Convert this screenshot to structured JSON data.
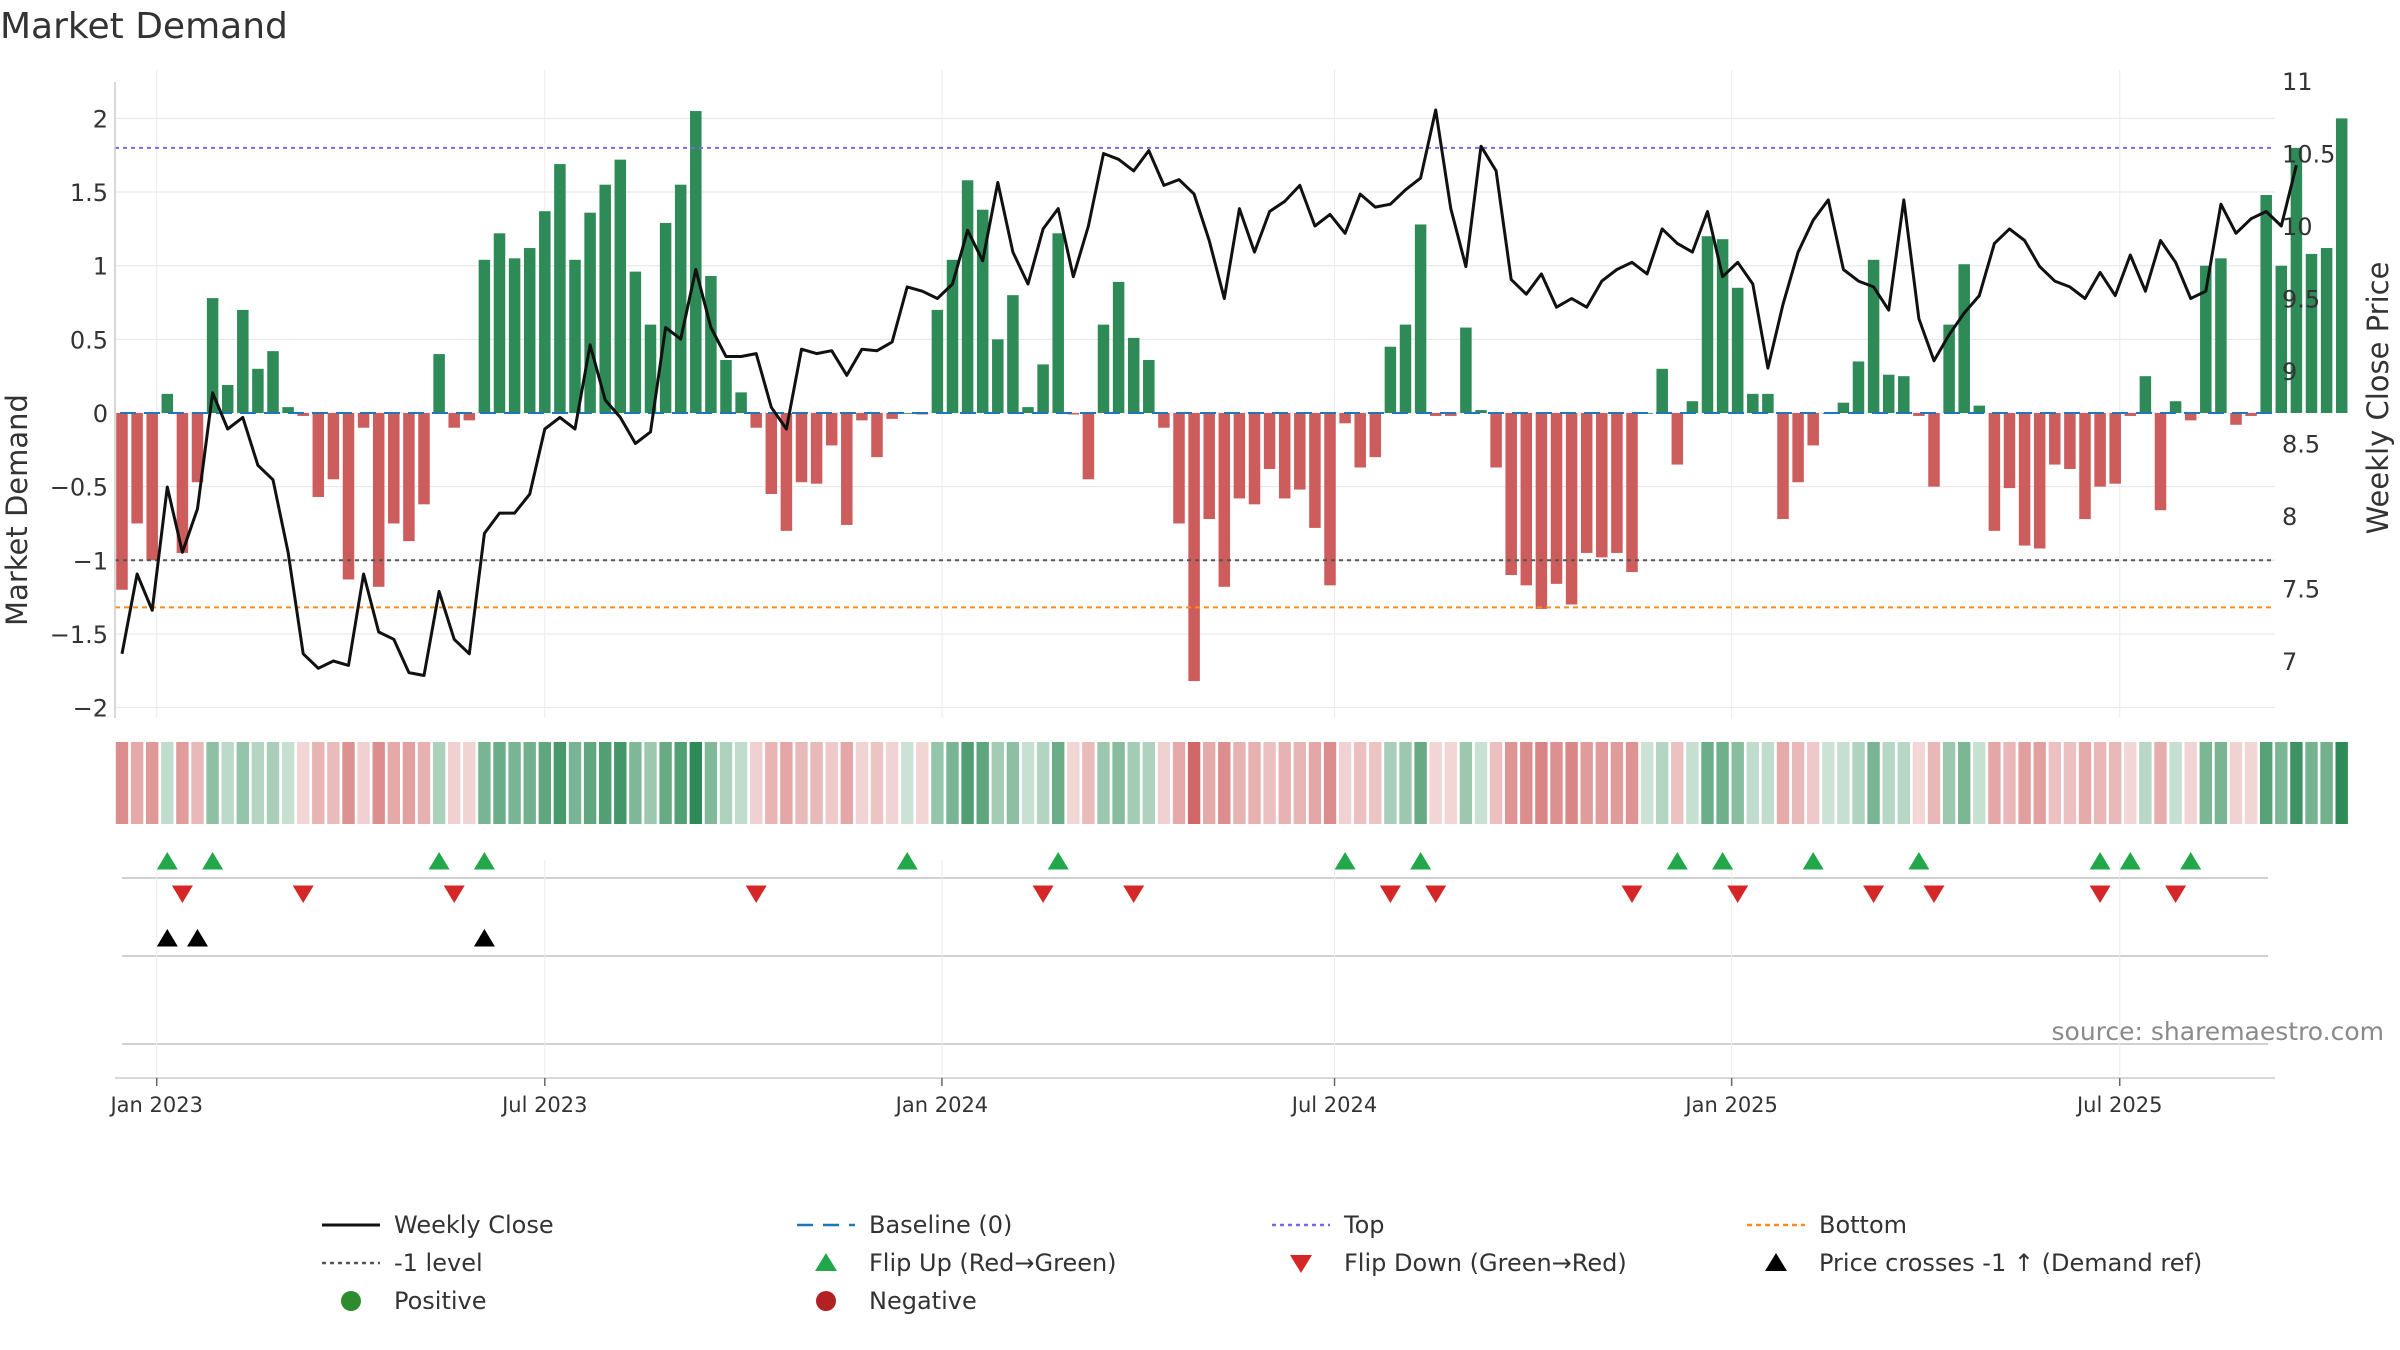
{
  "chart_data": {
    "type": "bar",
    "title": "Market Demand",
    "ylabel_left": "Market Demand",
    "ylabel_right": "Weekly Close Price",
    "ylim_left": [
      -2.1,
      2.3
    ],
    "ylim_right": [
      6.6,
      11.1
    ],
    "y_ticks_left": [
      "2",
      "1.5",
      "1",
      "0.5",
      "0",
      "−0.5",
      "−1",
      "−1.5",
      "−2"
    ],
    "y_tick_values_left": [
      2,
      1.5,
      1,
      0.5,
      0,
      -0.5,
      -1,
      -1.5,
      -2
    ],
    "y_ticks_right": [
      "11",
      "10.5",
      "10",
      "9.5",
      "9",
      "8.5",
      "8",
      "7.5",
      "7"
    ],
    "y_tick_values_right": [
      11,
      10.5,
      10,
      9.5,
      9,
      8.5,
      8,
      7.5,
      7
    ],
    "x_ticks": [
      "Jan 2023",
      "Jul 2023",
      "Jan 2024",
      "Jul 2024",
      "Jan 2025",
      "Jul 2025"
    ],
    "x_tick_week_index": [
      2.3,
      28.0,
      54.3,
      80.3,
      106.6,
      132.3
    ],
    "reference_lines": {
      "top": 1.8,
      "bottom": -1.32,
      "minus_one": -1.0,
      "baseline": 0
    },
    "demand": [
      -1.2,
      -0.75,
      -1.0,
      0.13,
      -0.95,
      -0.47,
      0.78,
      0.19,
      0.7,
      0.3,
      0.42,
      0.04,
      -0.02,
      -0.57,
      -0.45,
      -1.13,
      -0.1,
      -1.18,
      -0.75,
      -0.87,
      -0.62,
      0.4,
      -0.1,
      -0.05,
      1.04,
      1.22,
      1.05,
      1.12,
      1.37,
      1.69,
      1.04,
      1.36,
      1.55,
      1.72,
      0.96,
      0.6,
      1.29,
      1.55,
      2.05,
      0.93,
      0.36,
      0.14,
      -0.1,
      -0.55,
      -0.8,
      -0.47,
      -0.48,
      -0.22,
      -0.76,
      -0.05,
      -0.3,
      -0.04,
      0.0,
      -0.01,
      0.7,
      1.04,
      1.58,
      1.38,
      0.5,
      0.8,
      0.04,
      0.33,
      1.22,
      -0.01,
      -0.45,
      0.6,
      0.89,
      0.51,
      0.36,
      -0.1,
      -0.75,
      -1.82,
      -0.72,
      -1.18,
      -0.58,
      -0.62,
      -0.38,
      -0.58,
      -0.52,
      -0.78,
      -1.17,
      -0.07,
      -0.37,
      -0.3,
      0.45,
      0.6,
      1.28,
      -0.02,
      -0.02,
      0.58,
      0.02,
      -0.37,
      -1.1,
      -1.17,
      -1.33,
      -1.16,
      -1.3,
      -0.95,
      -0.98,
      -0.95,
      -1.08,
      0.0,
      0.3,
      -0.35,
      0.08,
      1.2,
      1.18,
      0.85,
      0.13,
      0.13,
      -0.72,
      -0.47,
      -0.22,
      0.0,
      0.07,
      0.35,
      1.04,
      0.26,
      0.25,
      -0.02,
      -0.5,
      0.6,
      1.01,
      0.05,
      -0.8,
      -0.51,
      -0.9,
      -0.92,
      -0.35,
      -0.38,
      -0.72,
      -0.5,
      -0.48,
      -0.02,
      0.25,
      -0.66,
      0.08,
      -0.05,
      1.0,
      1.05,
      -0.08,
      -0.02,
      1.48,
      1.0,
      1.8,
      1.08,
      1.12,
      2.0
    ],
    "weekly_close": [
      7.05,
      7.6,
      7.35,
      8.2,
      7.75,
      8.05,
      8.85,
      8.6,
      8.68,
      8.35,
      8.25,
      7.75,
      7.05,
      6.95,
      7.0,
      6.97,
      7.6,
      7.2,
      7.15,
      6.92,
      6.9,
      7.48,
      7.15,
      7.05,
      7.88,
      8.02,
      8.02,
      8.15,
      8.6,
      8.68,
      8.6,
      9.18,
      8.8,
      8.68,
      8.5,
      8.58,
      9.3,
      9.22,
      9.7,
      9.3,
      9.1,
      9.1,
      9.12,
      8.75,
      8.6,
      9.15,
      9.12,
      9.14,
      8.97,
      9.15,
      9.14,
      9.2,
      9.58,
      9.55,
      9.5,
      9.6,
      9.97,
      9.76,
      10.3,
      9.82,
      9.6,
      9.98,
      10.12,
      9.65,
      10.0,
      10.5,
      10.46,
      10.38,
      10.52,
      10.28,
      10.32,
      10.22,
      9.9,
      9.5,
      10.12,
      9.82,
      10.1,
      10.17,
      10.28,
      10.0,
      10.08,
      9.95,
      10.22,
      10.13,
      10.15,
      10.25,
      10.33,
      10.8,
      10.12,
      9.72,
      10.55,
      10.38,
      9.63,
      9.53,
      9.67,
      9.44,
      9.5,
      9.44,
      9.62,
      9.7,
      9.75,
      9.67,
      9.98,
      9.88,
      9.82,
      10.1,
      9.65,
      9.75,
      9.6,
      9.02,
      9.46,
      9.82,
      10.04,
      10.18,
      9.7,
      9.62,
      9.58,
      9.42,
      10.18,
      9.36,
      9.07,
      9.25,
      9.4,
      9.52,
      9.88,
      9.98,
      9.9,
      9.72,
      9.62,
      9.58,
      9.5,
      9.68,
      9.52,
      9.8,
      9.55,
      9.9,
      9.75,
      9.5,
      9.55,
      10.15,
      9.95,
      10.05,
      10.1,
      10.0,
      10.42
    ],
    "flip_up_index": [
      3,
      6,
      21,
      24,
      52,
      62,
      81,
      86,
      103,
      106,
      112,
      119,
      131,
      133,
      137
    ],
    "flip_down_index": [
      4,
      12,
      22,
      42,
      61,
      67,
      84,
      87,
      100,
      107,
      116,
      120,
      131,
      136
    ],
    "price_cross_index": [
      3,
      5,
      24
    ],
    "source_note": "source: sharemaestro.com",
    "legend": [
      {
        "label": "Weekly Close"
      },
      {
        "label": "Baseline (0)"
      },
      {
        "label": "Top"
      },
      {
        "label": "Bottom"
      },
      {
        "label": "-1 level"
      },
      {
        "label": "Flip Up (Red→Green)"
      },
      {
        "label": "Flip Down (Green→Red)"
      },
      {
        "label": "Price crosses -1 ↑ (Demand ref)"
      },
      {
        "label": "Positive"
      },
      {
        "label": "Negative"
      }
    ],
    "colors": {
      "positive": "#2e8b57",
      "negative": "#cd5c5c",
      "close_line": "#111111",
      "baseline": "#1f77b4",
      "top": "#7b68ee",
      "bottom": "#ff8c1a",
      "minus_one": "#555555",
      "flip_up": "#22a84a",
      "flip_down": "#d62728",
      "price_cross": "#000000",
      "legend_positive": "#2e8b2e",
      "legend_negative": "#b22222"
    }
  }
}
